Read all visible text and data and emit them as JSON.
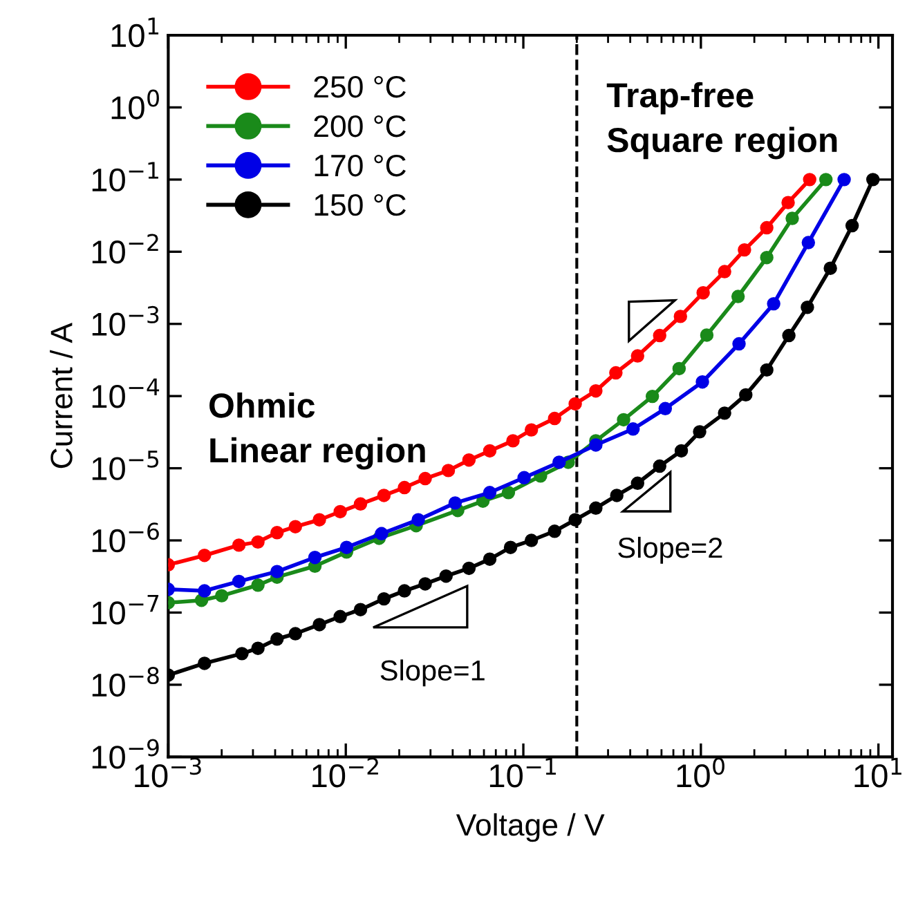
{
  "chart_data": {
    "type": "line",
    "xlabel": "Voltage / V",
    "ylabel": "Current / A",
    "log": "xy",
    "xlim": [
      0.001,
      12
    ],
    "ylim": [
      1e-09,
      10
    ],
    "xticks": [
      {
        "value": 0.001,
        "label": "10$^{−3}$"
      },
      {
        "value": 0.01,
        "label": "10$^{−2}$"
      },
      {
        "value": 0.1,
        "label": "10$^{−1}$"
      },
      {
        "value": 1,
        "label": "10$^{0}$"
      },
      {
        "value": 10,
        "label": "10$^{1}$"
      }
    ],
    "yticks": [
      {
        "value": 1e-09,
        "label": "10$^{−9}$"
      },
      {
        "value": 1e-08,
        "label": "10$^{−8}$"
      },
      {
        "value": 1e-07,
        "label": "10$^{−7}$"
      },
      {
        "value": 1e-06,
        "label": "10$^{−6}$"
      },
      {
        "value": 1e-05,
        "label": "10$^{−5}$"
      },
      {
        "value": 0.0001,
        "label": "10$^{−4}$"
      },
      {
        "value": 0.001,
        "label": "10$^{−3}$"
      },
      {
        "value": 0.01,
        "label": "10$^{−2}$"
      },
      {
        "value": 0.1,
        "label": "10$^{−1}$"
      },
      {
        "value": 1,
        "label": "10$^{0}$"
      },
      {
        "value": 10,
        "label": "10$^{1}$"
      }
    ],
    "grid": false,
    "legend": "top left",
    "marker": "circle",
    "line_style": "solid",
    "ref_lines": [
      {
        "axis": "x",
        "value": 0.2,
        "color": "#000000",
        "line_style": "dashed"
      }
    ],
    "annotations": [
      "Ohmic\nLinear region",
      "Trap-free\nSquare region",
      "Slope=1",
      "Slope=2"
    ],
    "series": [
      {
        "name": "250 °C",
        "color": "#ff0000",
        "x": [
          0.001,
          0.0016,
          0.0025,
          0.0032,
          0.0041,
          0.0052,
          0.0071,
          0.0093,
          0.0121,
          0.0164,
          0.0214,
          0.028,
          0.0378,
          0.0494,
          0.0647,
          0.0874,
          0.111,
          0.15,
          0.196,
          0.256,
          0.332,
          0.44,
          0.586,
          0.767,
          1.03,
          1.36,
          1.76,
          2.35,
          3.1,
          4.1
        ],
        "values": [
          4.6e-07,
          6.2e-07,
          8.6e-07,
          9.5e-07,
          1.28e-06,
          1.55e-06,
          1.93e-06,
          2.5e-06,
          3.2e-06,
          4.2e-06,
          5.4e-06,
          7.2e-06,
          9.3e-06,
          1.3e-05,
          1.74e-05,
          2.4e-05,
          3.4e-05,
          4.9e-05,
          7.8e-05,
          0.000118,
          0.00021,
          0.00036,
          0.00069,
          0.00127,
          0.0027,
          0.0053,
          0.0106,
          0.0215,
          0.048,
          0.1
        ]
      },
      {
        "name": "200 °C",
        "color": "#1a8a1a",
        "x": [
          0.001,
          0.00154,
          0.002,
          0.0032,
          0.0041,
          0.0067,
          0.0101,
          0.0154,
          0.0249,
          0.0427,
          0.0592,
          0.0824,
          0.125,
          0.179,
          0.256,
          0.367,
          0.533,
          0.754,
          1.08,
          1.62,
          2.35,
          3.27,
          5.06
        ],
        "values": [
          1.37e-07,
          1.48e-07,
          1.71e-07,
          2.4e-07,
          3.1e-07,
          4.4e-07,
          6.9e-07,
          1.07e-06,
          1.6e-06,
          2.6e-06,
          3.5e-06,
          4.6e-06,
          7.8e-06,
          1.21e-05,
          2.4e-05,
          4.7e-05,
          9.9e-05,
          0.00024,
          0.0007,
          0.0024,
          0.0083,
          0.029,
          0.1
        ]
      },
      {
        "name": "170 °C",
        "color": "#0000e6",
        "x": [
          0.001,
          0.0016,
          0.0025,
          0.0041,
          0.0067,
          0.0101,
          0.0159,
          0.0256,
          0.0413,
          0.0647,
          0.101,
          0.159,
          0.256,
          0.415,
          0.63,
          1.02,
          1.64,
          2.57,
          4.03,
          6.41
        ],
        "values": [
          2.1e-07,
          2e-07,
          2.7e-07,
          3.7e-07,
          5.8e-07,
          8e-07,
          1.24e-06,
          1.93e-06,
          3.3e-06,
          4.6e-06,
          7.4e-06,
          1.21e-05,
          2.1e-05,
          3.5e-05,
          6.7e-05,
          0.000157,
          0.00053,
          0.0019,
          0.0134,
          0.1
        ]
      },
      {
        "name": "150 °C",
        "color": "#000000",
        "x": [
          0.001,
          0.0016,
          0.0026,
          0.0032,
          0.0041,
          0.0052,
          0.0071,
          0.0093,
          0.0121,
          0.0164,
          0.0214,
          0.028,
          0.0367,
          0.0494,
          0.0647,
          0.0847,
          0.111,
          0.15,
          0.196,
          0.256,
          0.336,
          0.44,
          0.586,
          0.776,
          0.984,
          1.36,
          1.79,
          2.35,
          3.13,
          3.98,
          5.36,
          7.11,
          9.31
        ],
        "values": [
          1.36e-08,
          1.98e-08,
          2.7e-08,
          3.2e-08,
          4.3e-08,
          5.1e-08,
          6.8e-08,
          8.8e-08,
          1.1e-07,
          1.55e-07,
          2e-07,
          2.5e-07,
          3.2e-07,
          4.1e-07,
          5.5e-07,
          8e-07,
          1e-06,
          1.34e-06,
          1.93e-06,
          2.8e-06,
          4.2e-06,
          6.2e-06,
          1.07e-05,
          1.74e-05,
          3.2e-05,
          5.8e-05,
          0.000104,
          0.00023,
          0.00069,
          0.0017,
          0.0059,
          0.023,
          0.1
        ]
      }
    ]
  }
}
